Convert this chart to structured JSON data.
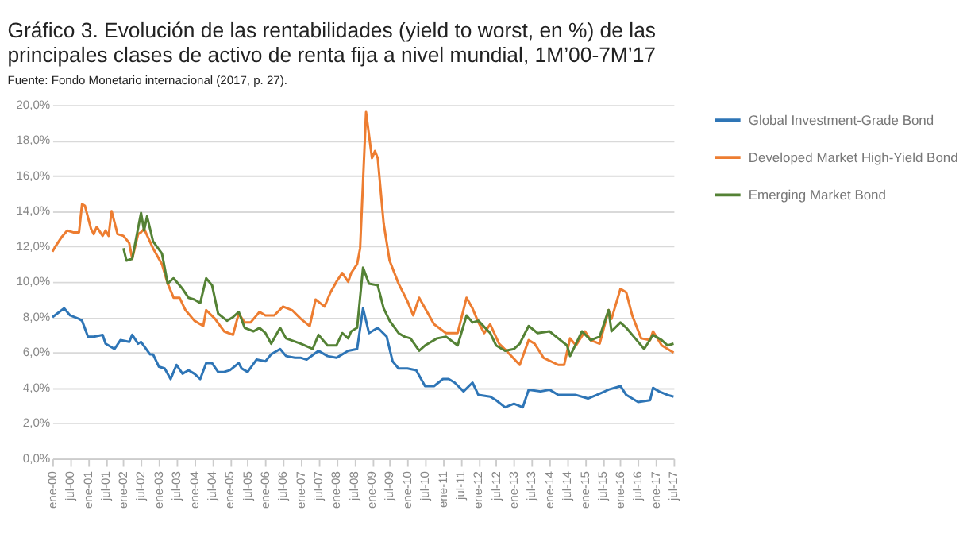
{
  "chart_data": {
    "type": "line",
    "title": "Gráfico 3. Evolución de las rentabilidades (yield to worst, en %) de las principales clases de activo de renta fija a nivel mundial, 1M’00-7M’17",
    "annotations": [
      "Fuente: Fondo Monetario internacional (2017, p. 27)."
    ],
    "series": [
      {
        "name": "Global Investment-Grade Bond",
        "color": "#2e75b6",
        "x": [
          "2000-01",
          "2000-05",
          "2000-07",
          "2000-10",
          "2000-11",
          "2001-01",
          "2001-03",
          "2001-06",
          "2001-07",
          "2001-10",
          "2001-12",
          "2002-03",
          "2002-04",
          "2002-06",
          "2002-07",
          "2002-10",
          "2002-11",
          "2003-01",
          "2003-03",
          "2003-05",
          "2003-07",
          "2003-09",
          "2003-11",
          "2004-01",
          "2004-03",
          "2004-05",
          "2004-07",
          "2004-09",
          "2004-11",
          "2005-01",
          "2005-04",
          "2005-05",
          "2005-07",
          "2005-10",
          "2006-01",
          "2006-03",
          "2006-06",
          "2006-08",
          "2006-11",
          "2007-01",
          "2007-03",
          "2007-07",
          "2007-10",
          "2008-01",
          "2008-05",
          "2008-08",
          "2008-10",
          "2008-12",
          "2009-03",
          "2009-06",
          "2009-08",
          "2009-10",
          "2010-01",
          "2010-04",
          "2010-07",
          "2010-10",
          "2011-01",
          "2011-03",
          "2011-05",
          "2011-08",
          "2011-11",
          "2012-01",
          "2012-05",
          "2012-07",
          "2012-10",
          "2013-01",
          "2013-04",
          "2013-06",
          "2013-10",
          "2014-01",
          "2014-04",
          "2014-07",
          "2014-10",
          "2015-02",
          "2015-05",
          "2015-09",
          "2016-01",
          "2016-03",
          "2016-07",
          "2016-11",
          "2016-12",
          "2017-02",
          "2017-05",
          "2017-07"
        ],
        "values": [
          8.0,
          8.5,
          8.1,
          7.9,
          7.8,
          6.9,
          6.9,
          7.0,
          6.5,
          6.2,
          6.7,
          6.6,
          7.0,
          6.5,
          6.6,
          5.9,
          5.9,
          5.2,
          5.1,
          4.5,
          5.3,
          4.8,
          5.0,
          4.8,
          4.5,
          5.4,
          5.4,
          4.9,
          4.9,
          5.0,
          5.4,
          5.1,
          4.9,
          5.6,
          5.5,
          5.9,
          6.2,
          5.8,
          5.7,
          5.7,
          5.6,
          6.1,
          5.8,
          5.7,
          6.1,
          6.2,
          8.5,
          7.1,
          7.4,
          6.9,
          5.5,
          5.1,
          5.1,
          5.0,
          4.1,
          4.1,
          4.5,
          4.5,
          4.3,
          3.8,
          4.3,
          3.6,
          3.5,
          3.3,
          2.9,
          3.1,
          2.9,
          3.9,
          3.8,
          3.9,
          3.6,
          3.6,
          3.6,
          3.4,
          3.6,
          3.9,
          4.1,
          3.6,
          3.2,
          3.3,
          4.0,
          3.8,
          3.6,
          3.5
        ]
      },
      {
        "name": "Developed Market High-Yield Bond",
        "color": "#ed7d31",
        "x": [
          "2000-01",
          "2000-02",
          "2000-04",
          "2000-06",
          "2000-08",
          "2000-10",
          "2000-11",
          "2000-12",
          "2001-02",
          "2001-03",
          "2001-04",
          "2001-06",
          "2001-07",
          "2001-08",
          "2001-09",
          "2001-11",
          "2002-01",
          "2002-03",
          "2002-04",
          "2002-06",
          "2002-07",
          "2002-08",
          "2002-11",
          "2003-02",
          "2003-04",
          "2003-06",
          "2003-08",
          "2003-10",
          "2004-01",
          "2004-04",
          "2004-05",
          "2004-08",
          "2004-11",
          "2005-02",
          "2005-04",
          "2005-06",
          "2005-08",
          "2005-11",
          "2006-01",
          "2006-04",
          "2006-07",
          "2006-10",
          "2007-01",
          "2007-04",
          "2007-06",
          "2007-09",
          "2007-11",
          "2008-01",
          "2008-03",
          "2008-05",
          "2008-06",
          "2008-08",
          "2008-09",
          "2008-11",
          "2009-01",
          "2009-02",
          "2009-03",
          "2009-05",
          "2009-07",
          "2009-10",
          "2010-01",
          "2010-03",
          "2010-05",
          "2010-07",
          "2010-10",
          "2011-02",
          "2011-06",
          "2011-09",
          "2011-11",
          "2012-01",
          "2012-03",
          "2012-05",
          "2012-08",
          "2012-11",
          "2013-03",
          "2013-06",
          "2013-08",
          "2013-11",
          "2014-04",
          "2014-06",
          "2014-08",
          "2014-10",
          "2015-01",
          "2015-03",
          "2015-06",
          "2015-09",
          "2015-10",
          "2016-01",
          "2016-03",
          "2016-05",
          "2016-08",
          "2016-11",
          "2016-12",
          "2017-03",
          "2017-05",
          "2017-07"
        ],
        "values": [
          11.7,
          12.0,
          12.5,
          12.9,
          12.8,
          12.8,
          14.4,
          14.3,
          13.0,
          12.7,
          13.1,
          12.6,
          12.9,
          12.6,
          14.0,
          12.7,
          12.6,
          12.2,
          11.3,
          12.7,
          12.8,
          13.0,
          11.9,
          11.0,
          9.9,
          9.1,
          9.1,
          8.4,
          7.8,
          7.5,
          8.4,
          7.9,
          7.2,
          7.0,
          8.2,
          7.7,
          7.7,
          8.3,
          8.1,
          8.1,
          8.6,
          8.4,
          7.9,
          7.5,
          9.0,
          8.6,
          9.4,
          10.0,
          10.5,
          10.0,
          10.5,
          11.0,
          11.9,
          19.6,
          17.0,
          17.4,
          17.0,
          13.3,
          11.2,
          9.9,
          8.9,
          8.1,
          9.1,
          8.5,
          7.6,
          7.1,
          7.1,
          9.1,
          8.5,
          7.7,
          7.1,
          7.6,
          6.5,
          6.0,
          5.3,
          6.7,
          6.5,
          5.7,
          5.3,
          5.3,
          6.8,
          6.4,
          7.2,
          6.7,
          6.5,
          8.4,
          7.9,
          9.6,
          9.4,
          8.1,
          6.8,
          6.7,
          7.2,
          6.4,
          6.2,
          6.0
        ]
      },
      {
        "name": "Emerging Market Bond",
        "color": "#548235",
        "x": [
          "2002-01",
          "2002-02",
          "2002-04",
          "2002-07",
          "2002-08",
          "2002-09",
          "2002-11",
          "2003-02",
          "2003-03",
          "2003-04",
          "2003-06",
          "2003-09",
          "2003-11",
          "2004-01",
          "2004-03",
          "2004-05",
          "2004-07",
          "2004-09",
          "2004-12",
          "2005-02",
          "2005-04",
          "2005-06",
          "2005-09",
          "2005-11",
          "2006-01",
          "2006-03",
          "2006-06",
          "2006-08",
          "2007-01",
          "2007-05",
          "2007-07",
          "2007-10",
          "2008-01",
          "2008-03",
          "2008-05",
          "2008-06",
          "2008-08",
          "2008-10",
          "2008-12",
          "2009-03",
          "2009-05",
          "2009-07",
          "2009-10",
          "2009-12",
          "2010-02",
          "2010-05",
          "2010-07",
          "2010-11",
          "2011-02",
          "2011-06",
          "2011-09",
          "2011-11",
          "2012-01",
          "2012-05",
          "2012-07",
          "2012-10",
          "2013-01",
          "2013-03",
          "2013-06",
          "2013-09",
          "2014-01",
          "2014-04",
          "2014-07",
          "2014-08",
          "2014-10",
          "2014-12",
          "2015-03",
          "2015-06",
          "2015-09",
          "2015-10",
          "2016-01",
          "2016-03",
          "2016-06",
          "2016-09",
          "2016-12",
          "2017-03",
          "2017-05",
          "2017-07"
        ],
        "values": [
          11.9,
          11.2,
          11.3,
          13.9,
          12.9,
          13.7,
          12.3,
          11.6,
          10.8,
          9.9,
          10.2,
          9.6,
          9.1,
          9.0,
          8.8,
          10.2,
          9.8,
          8.2,
          7.8,
          8.0,
          8.3,
          7.4,
          7.2,
          7.4,
          7.1,
          6.5,
          7.4,
          6.8,
          6.5,
          6.2,
          7.0,
          6.4,
          6.4,
          7.1,
          6.8,
          7.2,
          7.4,
          10.8,
          9.9,
          9.8,
          8.5,
          7.8,
          7.1,
          6.9,
          6.8,
          6.1,
          6.4,
          6.8,
          6.9,
          6.4,
          8.1,
          7.7,
          7.8,
          7.1,
          6.4,
          6.1,
          6.2,
          6.5,
          7.5,
          7.1,
          7.2,
          6.8,
          6.4,
          5.8,
          6.5,
          7.2,
          6.7,
          6.9,
          8.4,
          7.2,
          7.7,
          7.4,
          6.8,
          6.2,
          7.0,
          6.7,
          6.4,
          6.5
        ]
      }
    ],
    "xlim": [
      "2000-01",
      "2017-07"
    ],
    "xticks": [
      {
        "value": "2000-01",
        "label": "ene-00"
      },
      {
        "value": "2000-07",
        "label": "jul-00"
      },
      {
        "value": "2001-01",
        "label": "ene-01"
      },
      {
        "value": "2001-07",
        "label": "jul-01"
      },
      {
        "value": "2002-01",
        "label": "ene-02"
      },
      {
        "value": "2002-07",
        "label": "jul-02"
      },
      {
        "value": "2003-01",
        "label": "ene-03"
      },
      {
        "value": "2003-07",
        "label": "jul-03"
      },
      {
        "value": "2004-01",
        "label": "ene-04"
      },
      {
        "value": "2004-07",
        "label": "jul-04"
      },
      {
        "value": "2005-01",
        "label": "ene-05"
      },
      {
        "value": "2005-07",
        "label": "jul-05"
      },
      {
        "value": "2006-01",
        "label": "ene-06"
      },
      {
        "value": "2006-07",
        "label": "jul-06"
      },
      {
        "value": "2007-01",
        "label": "ene-07"
      },
      {
        "value": "2007-07",
        "label": "jul-07"
      },
      {
        "value": "2008-01",
        "label": "ene-08"
      },
      {
        "value": "2008-07",
        "label": "jul-08"
      },
      {
        "value": "2009-01",
        "label": "ene-09"
      },
      {
        "value": "2009-07",
        "label": "jul-09"
      },
      {
        "value": "2010-01",
        "label": "ene-10"
      },
      {
        "value": "2010-07",
        "label": "jul-10"
      },
      {
        "value": "2011-01",
        "label": "ene-11"
      },
      {
        "value": "2011-07",
        "label": "jul-11"
      },
      {
        "value": "2012-01",
        "label": "ene-12"
      },
      {
        "value": "2012-07",
        "label": "jul-12"
      },
      {
        "value": "2013-01",
        "label": "ene-13"
      },
      {
        "value": "2013-07",
        "label": "jul-13"
      },
      {
        "value": "2014-01",
        "label": "ene-14"
      },
      {
        "value": "2014-07",
        "label": "jul-14"
      },
      {
        "value": "2015-01",
        "label": "ene-15"
      },
      {
        "value": "2015-07",
        "label": "jul-15"
      },
      {
        "value": "2016-01",
        "label": "ene-16"
      },
      {
        "value": "2016-07",
        "label": "jul-16"
      },
      {
        "value": "2017-01",
        "label": "ene-17"
      },
      {
        "value": "2017-07",
        "label": "jul-17"
      }
    ],
    "ylim": [
      0,
      20
    ],
    "yticks": [
      {
        "value": 0,
        "label": "0,0%"
      },
      {
        "value": 2,
        "label": "2,0%"
      },
      {
        "value": 4,
        "label": "4,0%"
      },
      {
        "value": 6,
        "label": "6,0%"
      },
      {
        "value": 8,
        "label": "8,0%"
      },
      {
        "value": 10,
        "label": "10,0%"
      },
      {
        "value": 12,
        "label": "12,0%"
      },
      {
        "value": 14,
        "label": "14,0%"
      },
      {
        "value": 16,
        "label": "16,0%"
      },
      {
        "value": 18,
        "label": "18,0%"
      },
      {
        "value": 20,
        "label": "20,0%"
      }
    ],
    "grid": "y",
    "legend": "top right",
    "marker": "none",
    "line_style": "solid"
  }
}
